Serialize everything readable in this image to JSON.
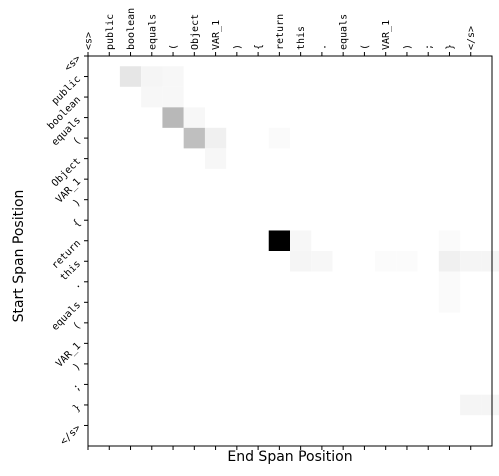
{
  "chart_data": {
    "type": "heatmap",
    "xlabel": "End Span Position",
    "ylabel": "Start Span Position",
    "x_tokens": [
      "<s>",
      "public",
      "boolean",
      "equals",
      "(",
      "Object",
      "VAR_1",
      ")",
      "{",
      "return",
      "this",
      ".",
      "equals",
      "(",
      "VAR_1",
      ")",
      ";",
      "}",
      "</s>"
    ],
    "y_tokens": [
      "<s>",
      "public",
      "boolean",
      "equals",
      "(",
      "Object",
      "VAR_1",
      ")",
      "{",
      "return",
      "this",
      ".",
      "equals",
      "(",
      "VAR_1",
      ")",
      ";",
      "}",
      "</s>"
    ],
    "color_scale": "greys",
    "value_range": [
      0,
      1
    ],
    "cells": [
      {
        "row": 1,
        "col": 2,
        "value": 0.1
      },
      {
        "row": 1,
        "col": 3,
        "value": 0.04
      },
      {
        "row": 1,
        "col": 4,
        "value": 0.03
      },
      {
        "row": 2,
        "col": 3,
        "value": 0.03
      },
      {
        "row": 2,
        "col": 4,
        "value": 0.03
      },
      {
        "row": 3,
        "col": 4,
        "value": 0.28
      },
      {
        "row": 3,
        "col": 5,
        "value": 0.03
      },
      {
        "row": 4,
        "col": 5,
        "value": 0.25
      },
      {
        "row": 4,
        "col": 6,
        "value": 0.06
      },
      {
        "row": 4,
        "col": 9,
        "value": 0.02
      },
      {
        "row": 5,
        "col": 6,
        "value": 0.03
      },
      {
        "row": 9,
        "col": 9,
        "value": 1.0
      },
      {
        "row": 9,
        "col": 10,
        "value": 0.03
      },
      {
        "row": 9,
        "col": 17,
        "value": 0.02
      },
      {
        "row": 10,
        "col": 10,
        "value": 0.04
      },
      {
        "row": 10,
        "col": 11,
        "value": 0.03
      },
      {
        "row": 10,
        "col": 14,
        "value": 0.015
      },
      {
        "row": 10,
        "col": 15,
        "value": 0.015
      },
      {
        "row": 10,
        "col": 17,
        "value": 0.06
      },
      {
        "row": 10,
        "col": 18,
        "value": 0.04
      },
      {
        "row": 10,
        "col": 19,
        "value": 0.04
      },
      {
        "row": 11,
        "col": 17,
        "value": 0.02
      },
      {
        "row": 12,
        "col": 17,
        "value": 0.02
      },
      {
        "row": 17,
        "col": 18,
        "value": 0.04
      },
      {
        "row": 17,
        "col": 19,
        "value": 0.04
      }
    ]
  }
}
